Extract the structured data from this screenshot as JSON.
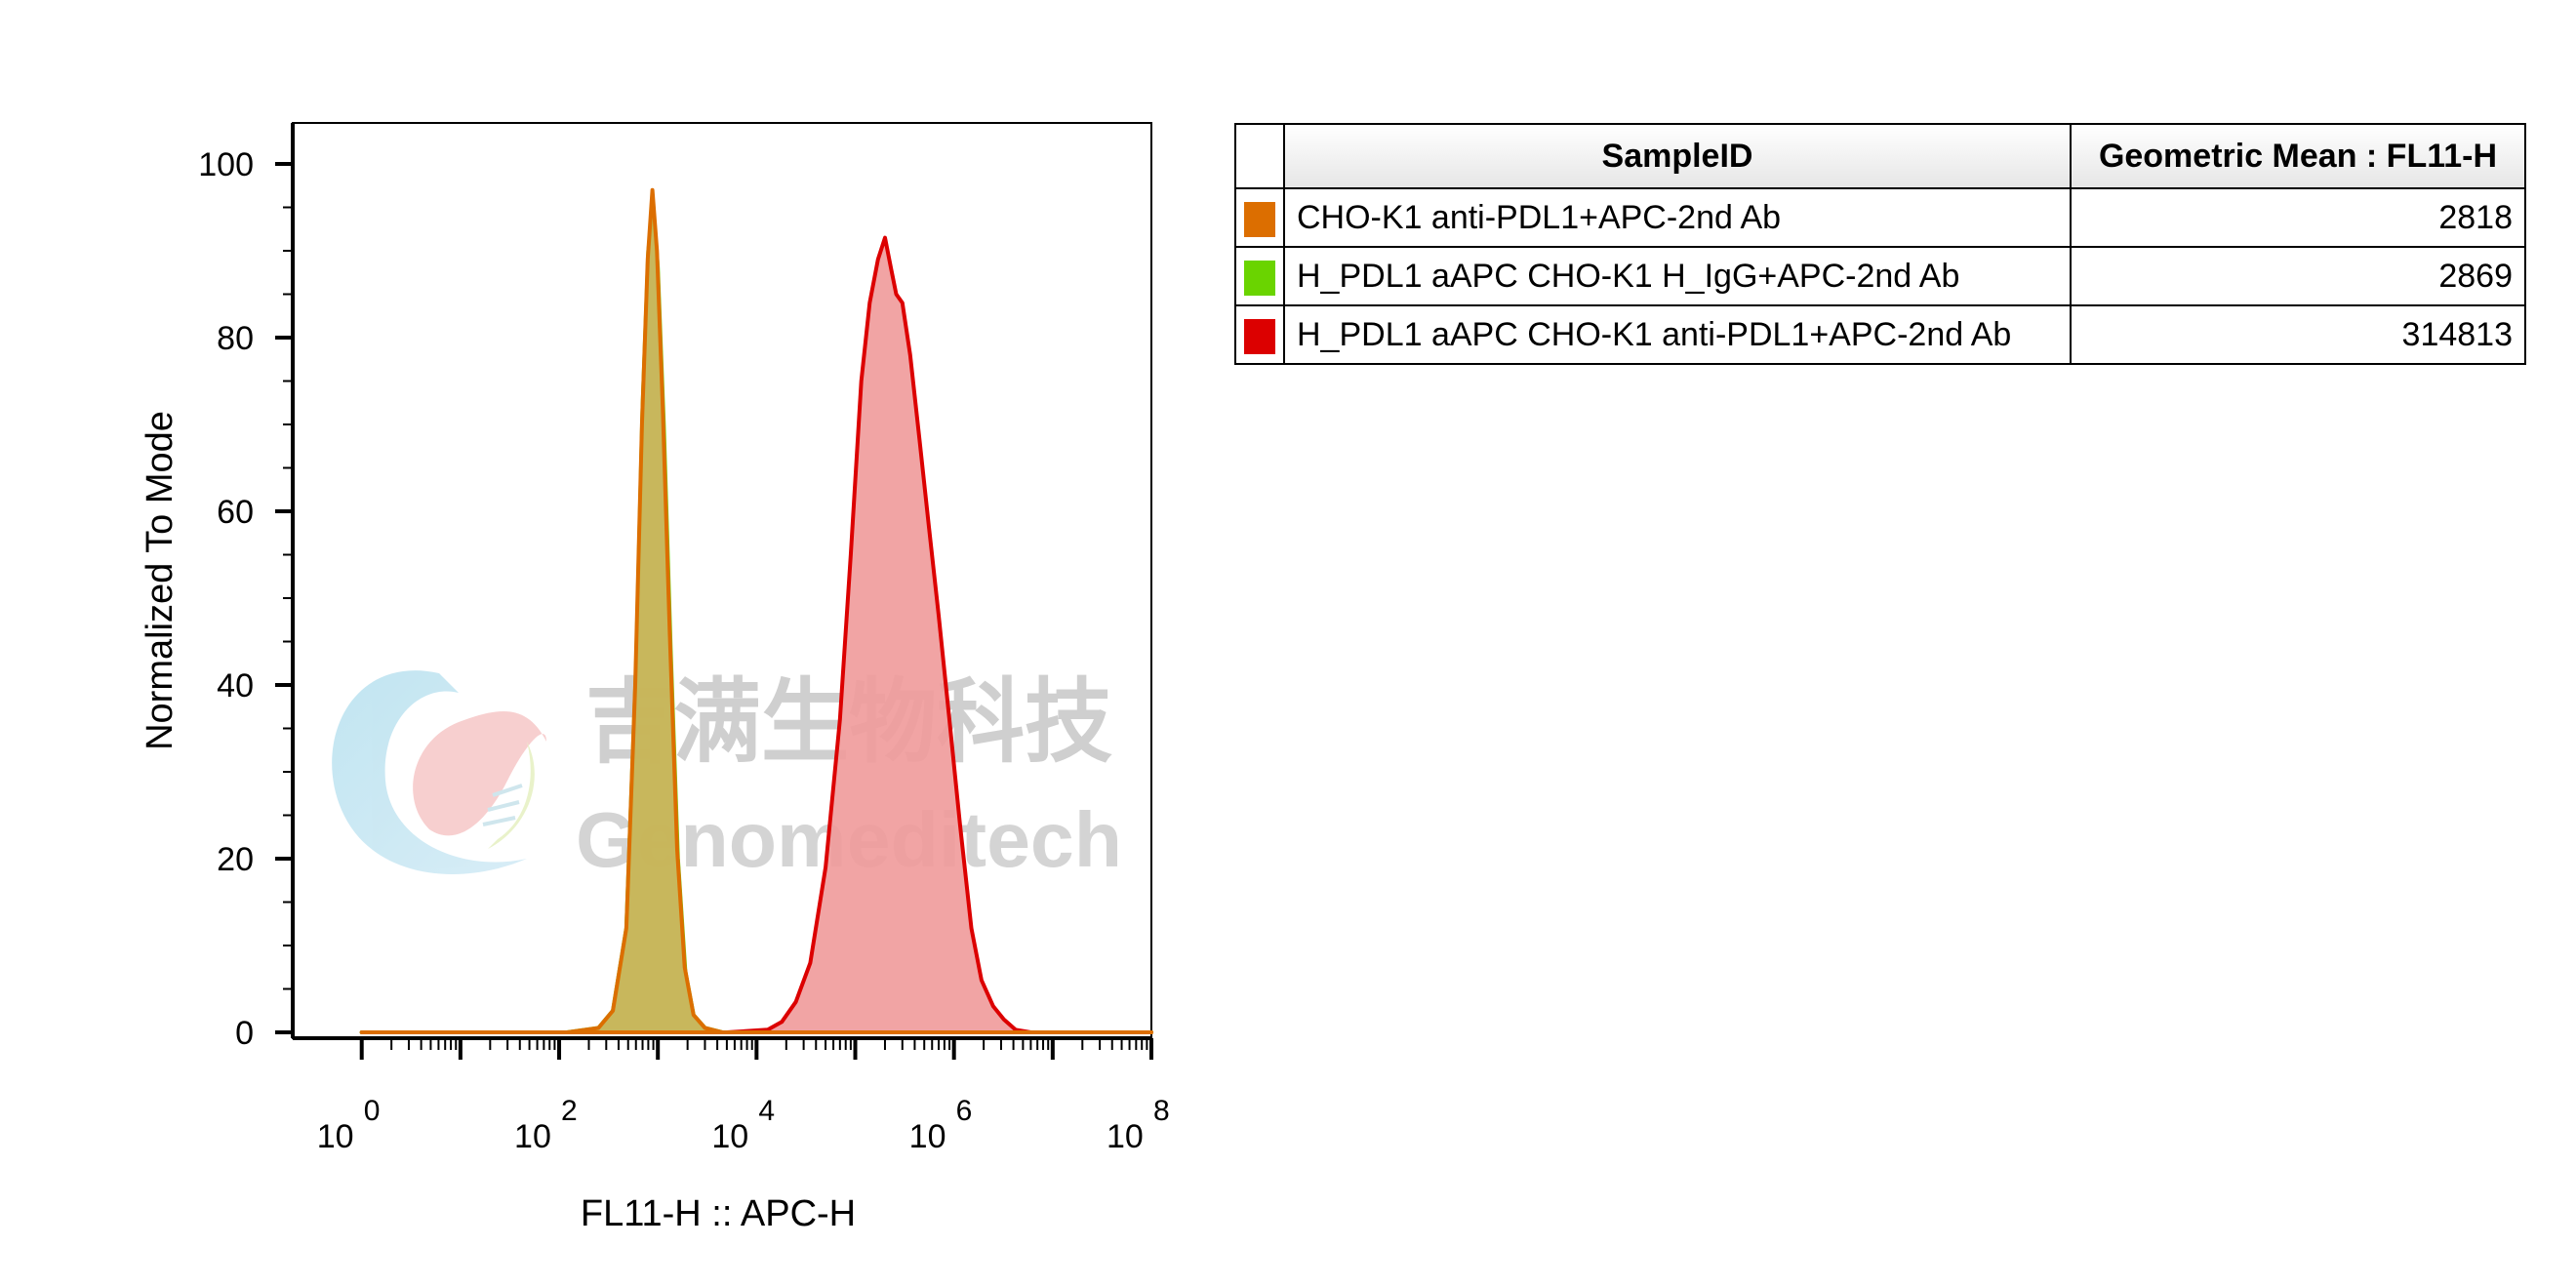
{
  "watermark": {
    "cn": "吉满生物科技",
    "en": "Genomeditech",
    "logo_icon": "genomeditech-logo-icon"
  },
  "chart_data": {
    "type": "area",
    "title": "",
    "xlabel": "FL11-H :: APC-H",
    "ylabel": "Normalized To Mode",
    "xscale": "log10",
    "xlim": [
      0.2,
      100000000
    ],
    "ylim": [
      0,
      100
    ],
    "x_ticks": [
      {
        "base": "10",
        "exp": "0"
      },
      {
        "base": "10",
        "exp": "2"
      },
      {
        "base": "10",
        "exp": "4"
      },
      {
        "base": "10",
        "exp": "6"
      },
      {
        "base": "10",
        "exp": "8"
      }
    ],
    "x_tick_values": [
      1,
      100,
      10000,
      1000000,
      100000000
    ],
    "y_ticks": [
      "0",
      "20",
      "40",
      "60",
      "80",
      "100"
    ],
    "y_tick_values": [
      0,
      20,
      40,
      60,
      80,
      100
    ],
    "series": [
      {
        "name": "H_PDL1 aAPC CHO-K1 anti-PDL1+APC-2nd Ab",
        "stroke": "#dc0000",
        "fill": "#f09a9a",
        "points": [
          [
            1,
            0
          ],
          [
            5000,
            0
          ],
          [
            13000,
            0.3
          ],
          [
            18000,
            1.2
          ],
          [
            25000,
            3.5
          ],
          [
            35000,
            8
          ],
          [
            50000,
            19
          ],
          [
            70000,
            36
          ],
          [
            90000,
            55
          ],
          [
            115000,
            75
          ],
          [
            140000,
            84
          ],
          [
            170000,
            89
          ],
          [
            200000,
            91.5
          ],
          [
            230000,
            88
          ],
          [
            260000,
            85
          ],
          [
            300000,
            84
          ],
          [
            360000,
            78
          ],
          [
            450000,
            68
          ],
          [
            560000,
            58
          ],
          [
            700000,
            48
          ],
          [
            900000,
            36
          ],
          [
            1150000,
            24
          ],
          [
            1500000,
            12
          ],
          [
            1900000,
            6
          ],
          [
            2500000,
            3
          ],
          [
            3200000,
            1.5
          ],
          [
            4200000,
            0.3
          ],
          [
            6000000,
            0
          ],
          [
            100000000,
            0
          ]
        ]
      },
      {
        "name": "H_PDL1 aAPC CHO-K1 H_IgG+APC-2nd Ab",
        "stroke": "#6ad400",
        "fill": "#c8c060",
        "points": [
          [
            1,
            0
          ],
          [
            120,
            0
          ],
          [
            250,
            0.5
          ],
          [
            350,
            2.5
          ],
          [
            480,
            12
          ],
          [
            600,
            42
          ],
          [
            700,
            72
          ],
          [
            800,
            90
          ],
          [
            900,
            95
          ],
          [
            1000,
            88
          ],
          [
            1150,
            70
          ],
          [
            1350,
            44
          ],
          [
            1600,
            20
          ],
          [
            1900,
            7
          ],
          [
            2300,
            2
          ],
          [
            3000,
            0.5
          ],
          [
            4500,
            0
          ],
          [
            100000000,
            0
          ]
        ]
      },
      {
        "name": "CHO-K1 anti-PDL1+APC-2nd Ab",
        "stroke": "#dc6e00",
        "fill": "#c8b55a",
        "points": [
          [
            1,
            0
          ],
          [
            120,
            0
          ],
          [
            250,
            0.5
          ],
          [
            350,
            2.5
          ],
          [
            480,
            12
          ],
          [
            590,
            40
          ],
          [
            690,
            70
          ],
          [
            790,
            89
          ],
          [
            880,
            97
          ],
          [
            980,
            90
          ],
          [
            1120,
            72
          ],
          [
            1320,
            46
          ],
          [
            1570,
            21
          ],
          [
            1870,
            7.5
          ],
          [
            2300,
            2
          ],
          [
            3000,
            0.5
          ],
          [
            4500,
            0
          ],
          [
            100000000,
            0
          ]
        ]
      }
    ]
  },
  "legend_table": {
    "headers": {
      "sample": "SampleID",
      "value": "Geometric Mean : FL11-H"
    },
    "rows": [
      {
        "color": "#dc6e00",
        "sample": "CHO-K1 anti-PDL1+APC-2nd Ab",
        "value": "2818"
      },
      {
        "color": "#6ad400",
        "sample": "H_PDL1 aAPC CHO-K1 H_IgG+APC-2nd Ab",
        "value": "2869"
      },
      {
        "color": "#dc0000",
        "sample": "H_PDL1 aAPC CHO-K1 anti-PDL1+APC-2nd Ab",
        "value": "314813"
      }
    ]
  }
}
